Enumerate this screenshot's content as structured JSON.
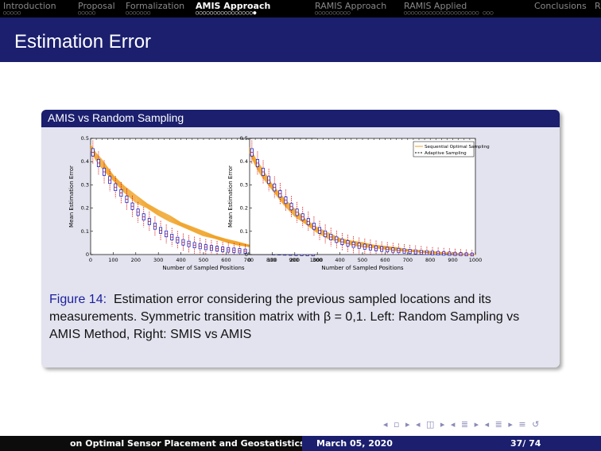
{
  "nav": {
    "sections": [
      {
        "label": "Introduction",
        "dots": "○○○○○",
        "active": false
      },
      {
        "label": "Proposal",
        "dots": "○○○○○",
        "active": false
      },
      {
        "label": "Formalization",
        "dots": "○○○○○○○",
        "active": false
      },
      {
        "label": "AMIS Approach",
        "dots": "○○○○○○○○○○○○○○○○●",
        "active": true
      },
      {
        "label": "RAMIS Approach",
        "dots": "○○○○○○○○○○",
        "active": false
      },
      {
        "label": "RAMIS Applied",
        "dots": "○○○○○○○○○○○○○○○○○○○○○ ○○○",
        "active": false
      },
      {
        "label": "Conclusions",
        "dots": "",
        "active": false
      },
      {
        "label": "R",
        "dots": "",
        "active": false
      }
    ]
  },
  "slide": {
    "title": "Estimation Error",
    "block_title": "AMIS vs Random Sampling",
    "caption_label": "Figure 14:",
    "caption_text": "Estimation error considering the previous sampled locations and its measurements. Symmetric transition matrix with β = 0,1. Left: Random Sampling vs AMIS Method, Right: SMIS vs AMIS"
  },
  "navigation_symbols": "◂ ▫ ▸ ◂ ◫ ▸ ◂ ≣ ▸ ◂ ≣ ▸ ≡ ↺",
  "footer": {
    "title": "on Optimal Sensor Placement and Geostatistics",
    "date": "March 05, 2020",
    "page": "37/ 74"
  },
  "colors": {
    "dark_blue": "#1b1f6e",
    "orange": "#f0a020",
    "blue_box": "#2020c0",
    "red_whisker": "#e01010"
  },
  "chart_data": [
    {
      "type": "line",
      "xlabel": "Number of Sampled Positions",
      "ylabel": "Mean Estimation Error",
      "xlim": [
        0,
        1000
      ],
      "ylim": [
        0,
        0.5
      ],
      "xticks": [
        0,
        100,
        200,
        300,
        400,
        500,
        600,
        700,
        800,
        900,
        1000
      ],
      "yticks": [
        0,
        0.1,
        0.2,
        0.3,
        0.4,
        0.5
      ],
      "legend": "top-right",
      "series": [
        {
          "name": "Random Sampling",
          "x": [
            0,
            25,
            50,
            100,
            150,
            200,
            250,
            300,
            350,
            400,
            450,
            500,
            550,
            600,
            650,
            700,
            750,
            800,
            850,
            900,
            950,
            1000
          ],
          "y": [
            0.46,
            0.42,
            0.39,
            0.33,
            0.28,
            0.24,
            0.21,
            0.18,
            0.155,
            0.13,
            0.11,
            0.09,
            0.075,
            0.06,
            0.048,
            0.038,
            0.028,
            0.02,
            0.013,
            0.008,
            0.003,
            0.0
          ]
        },
        {
          "name": "Adaptive Sampling",
          "x": [
            0,
            25,
            50,
            100,
            150,
            200,
            250,
            300,
            350,
            400,
            450,
            500,
            550,
            600,
            650,
            700,
            750,
            800,
            850,
            900,
            950,
            1000
          ],
          "y": [
            0.46,
            0.41,
            0.37,
            0.3,
            0.25,
            0.19,
            0.15,
            0.11,
            0.08,
            0.055,
            0.042,
            0.033,
            0.026,
            0.021,
            0.017,
            0.013,
            0.01,
            0.007,
            0.005,
            0.003,
            0.001,
            0.0
          ]
        }
      ]
    },
    {
      "type": "line",
      "xlabel": "Number of Sampled Positions",
      "ylabel": "Mean Estimation Error",
      "xlim": [
        0,
        1000
      ],
      "ylim": [
        0,
        0.5
      ],
      "xticks": [
        0,
        100,
        200,
        300,
        400,
        500,
        600,
        700,
        800,
        900,
        1000
      ],
      "yticks": [
        0,
        0.1,
        0.2,
        0.3,
        0.4,
        0.5
      ],
      "legend": "top-right",
      "series": [
        {
          "name": "Sequential Optimal Sampling",
          "x": [
            0,
            25,
            50,
            100,
            150,
            200,
            250,
            300,
            350,
            400,
            450,
            500,
            550,
            600,
            650,
            700,
            750,
            800,
            850,
            900,
            950,
            1000
          ],
          "y": [
            0.45,
            0.4,
            0.36,
            0.29,
            0.23,
            0.18,
            0.14,
            0.105,
            0.08,
            0.062,
            0.05,
            0.042,
            0.035,
            0.029,
            0.023,
            0.018,
            0.014,
            0.01,
            0.007,
            0.004,
            0.002,
            0.0
          ]
        },
        {
          "name": "Adaptive Sampling",
          "x": [
            0,
            25,
            50,
            100,
            150,
            200,
            250,
            300,
            350,
            400,
            450,
            500,
            550,
            600,
            650,
            700,
            750,
            800,
            850,
            900,
            950,
            1000
          ],
          "y": [
            0.46,
            0.41,
            0.37,
            0.3,
            0.245,
            0.19,
            0.15,
            0.11,
            0.08,
            0.057,
            0.044,
            0.035,
            0.028,
            0.022,
            0.018,
            0.014,
            0.01,
            0.007,
            0.005,
            0.003,
            0.001,
            0.0
          ]
        }
      ]
    }
  ]
}
